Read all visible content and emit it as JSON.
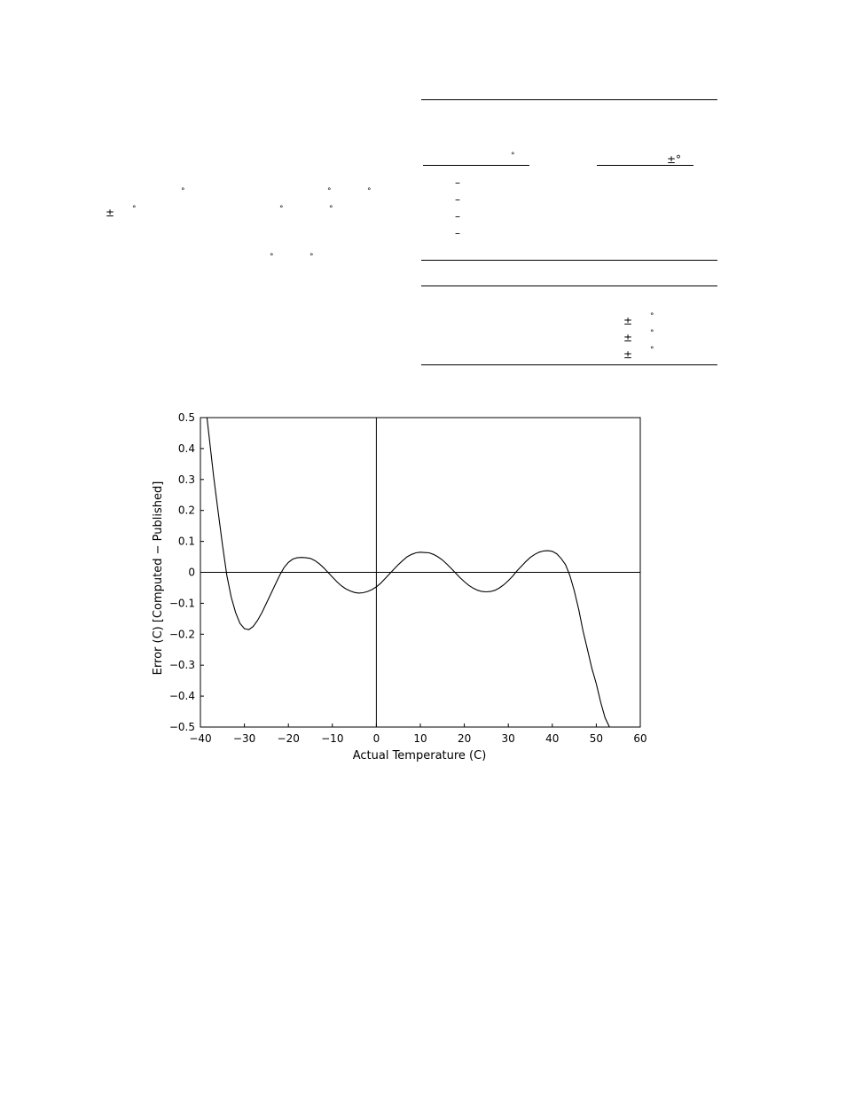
{
  "fragments": {
    "degree": "°",
    "plus_minus": "±",
    "plus_minus_degree": "±°",
    "dash": "–"
  },
  "chart_data": {
    "type": "line",
    "title": "",
    "xlabel": "Actual Temperature (C)",
    "ylabel": "Error (C) [Computed − Published]",
    "xlim": [
      -40,
      60
    ],
    "ylim": [
      -0.5,
      0.5
    ],
    "x_ticks": [
      -40,
      -30,
      -20,
      -10,
      0,
      10,
      20,
      30,
      40,
      50,
      60
    ],
    "x_tick_labels": [
      "−40",
      "−30",
      "−20",
      "−10",
      "0",
      "10",
      "20",
      "30",
      "40",
      "50",
      "60"
    ],
    "y_ticks": [
      0.5,
      0.4,
      0.3,
      0.2,
      0.1,
      0,
      -0.1,
      -0.2,
      -0.3,
      -0.4,
      -0.5
    ],
    "y_tick_labels": [
      "0.5",
      "0.4",
      "0.3",
      "0.2",
      "0.1",
      "0",
      "−0.1",
      "−0.2",
      "−0.3",
      "−0.4",
      "−0.5"
    ],
    "grid": false,
    "zero_lines": true,
    "series": [
      {
        "x": [
          -38.5,
          -37,
          -36,
          -35,
          -34,
          -33,
          -32,
          -31,
          -30,
          -29,
          -28,
          -27,
          -26,
          -25,
          -24,
          -23,
          -22,
          -21,
          -20,
          -19,
          -18,
          -17,
          -16,
          -15,
          -14,
          -13,
          -12,
          -11,
          -10,
          -9,
          -8,
          -7,
          -6,
          -5,
          -4,
          -3,
          -2,
          -1,
          0,
          1,
          2,
          3,
          4,
          5,
          6,
          7,
          8,
          9,
          10,
          11,
          12,
          13,
          14,
          15,
          16,
          17,
          18,
          19,
          20,
          21,
          22,
          23,
          24,
          25,
          26,
          27,
          28,
          29,
          30,
          31,
          32,
          33,
          34,
          35,
          36,
          37,
          38,
          39,
          40,
          41,
          42,
          43,
          44,
          45,
          46,
          47,
          48,
          49,
          50,
          51,
          52,
          53
        ],
        "y": [
          0.5,
          0.31,
          0.2,
          0.09,
          -0.01,
          -0.08,
          -0.13,
          -0.165,
          -0.182,
          -0.185,
          -0.175,
          -0.155,
          -0.13,
          -0.1,
          -0.07,
          -0.04,
          -0.01,
          0.015,
          0.032,
          0.043,
          0.047,
          0.048,
          0.047,
          0.045,
          0.038,
          0.028,
          0.015,
          0.0,
          -0.015,
          -0.03,
          -0.043,
          -0.053,
          -0.06,
          -0.065,
          -0.067,
          -0.066,
          -0.062,
          -0.056,
          -0.047,
          -0.035,
          -0.02,
          -0.005,
          0.01,
          0.025,
          0.038,
          0.05,
          0.058,
          0.063,
          0.065,
          0.064,
          0.063,
          0.058,
          0.05,
          0.04,
          0.027,
          0.013,
          -0.002,
          -0.017,
          -0.03,
          -0.042,
          -0.051,
          -0.058,
          -0.062,
          -0.063,
          -0.062,
          -0.058,
          -0.05,
          -0.04,
          -0.027,
          -0.012,
          0.005,
          0.02,
          0.035,
          0.048,
          0.058,
          0.065,
          0.069,
          0.07,
          0.068,
          0.06,
          0.045,
          0.025,
          -0.01,
          -0.06,
          -0.12,
          -0.19,
          -0.25,
          -0.31,
          -0.36,
          -0.42,
          -0.47,
          -0.5
        ]
      }
    ]
  }
}
